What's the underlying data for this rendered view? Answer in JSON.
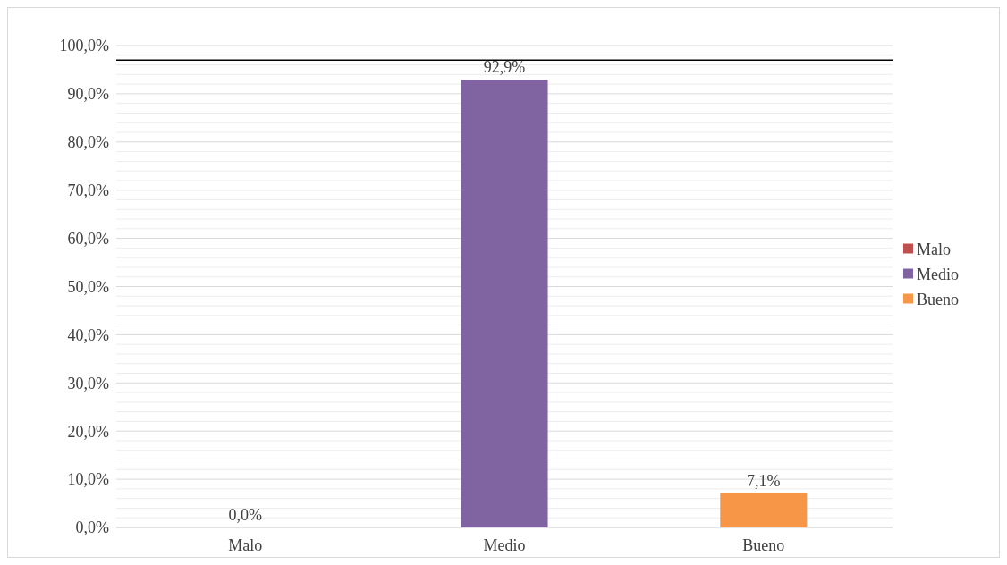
{
  "chart_data": {
    "type": "bar",
    "categories": [
      "Malo",
      "Medio",
      "Bueno"
    ],
    "series": [
      {
        "name": "Malo",
        "color": "#c0504d",
        "values": [
          0,
          null,
          null
        ],
        "value_labels": [
          "0,0%",
          null,
          null
        ]
      },
      {
        "name": "Medio",
        "color": "#8064a2",
        "values": [
          null,
          92.9,
          null
        ],
        "value_labels": [
          null,
          "92,9%",
          null
        ]
      },
      {
        "name": "Bueno",
        "color": "#f79646",
        "values": [
          null,
          null,
          7.1
        ],
        "value_labels": [
          null,
          null,
          "7,1%"
        ]
      }
    ],
    "ylim": [
      0,
      100
    ],
    "yticks": [
      {
        "value": 0,
        "label": "0,0%"
      },
      {
        "value": 2,
        "label": null
      },
      {
        "value": 4,
        "label": null
      },
      {
        "value": 6,
        "label": null
      },
      {
        "value": 8,
        "label": null
      },
      {
        "value": 10,
        "label": "10,0%"
      },
      {
        "value": 12,
        "label": null
      },
      {
        "value": 14,
        "label": null
      },
      {
        "value": 16,
        "label": null
      },
      {
        "value": 18,
        "label": null
      },
      {
        "value": 20,
        "label": "20,0%"
      },
      {
        "value": 22,
        "label": null
      },
      {
        "value": 24,
        "label": null
      },
      {
        "value": 26,
        "label": null
      },
      {
        "value": 28,
        "label": null
      },
      {
        "value": 30,
        "label": "30,0%"
      },
      {
        "value": 32,
        "label": null
      },
      {
        "value": 34,
        "label": null
      },
      {
        "value": 36,
        "label": null
      },
      {
        "value": 38,
        "label": null
      },
      {
        "value": 40,
        "label": "40,0%"
      },
      {
        "value": 42,
        "label": null
      },
      {
        "value": 44,
        "label": null
      },
      {
        "value": 46,
        "label": null
      },
      {
        "value": 48,
        "label": null
      },
      {
        "value": 50,
        "label": "50,0%"
      },
      {
        "value": 52,
        "label": null
      },
      {
        "value": 54,
        "label": null
      },
      {
        "value": 56,
        "label": null
      },
      {
        "value": 58,
        "label": null
      },
      {
        "value": 60,
        "label": "60,0%"
      },
      {
        "value": 62,
        "label": null
      },
      {
        "value": 64,
        "label": null
      },
      {
        "value": 66,
        "label": null
      },
      {
        "value": 68,
        "label": null
      },
      {
        "value": 70,
        "label": "70,0%"
      },
      {
        "value": 72,
        "label": null
      },
      {
        "value": 74,
        "label": null
      },
      {
        "value": 76,
        "label": null
      },
      {
        "value": 78,
        "label": null
      },
      {
        "value": 80,
        "label": "80,0%"
      },
      {
        "value": 82,
        "label": null
      },
      {
        "value": 84,
        "label": null
      },
      {
        "value": 86,
        "label": null
      },
      {
        "value": 88,
        "label": null
      },
      {
        "value": 90,
        "label": "90,0%"
      },
      {
        "value": 92,
        "label": null
      },
      {
        "value": 94,
        "label": null
      },
      {
        "value": 96,
        "label": null
      },
      {
        "value": 98,
        "label": null
      },
      {
        "value": 100,
        "label": "100,0%"
      }
    ],
    "grid": "y",
    "legend": "right",
    "ref_lines": [
      {
        "axis": "y",
        "value": 97,
        "color": "#000000"
      }
    ]
  }
}
